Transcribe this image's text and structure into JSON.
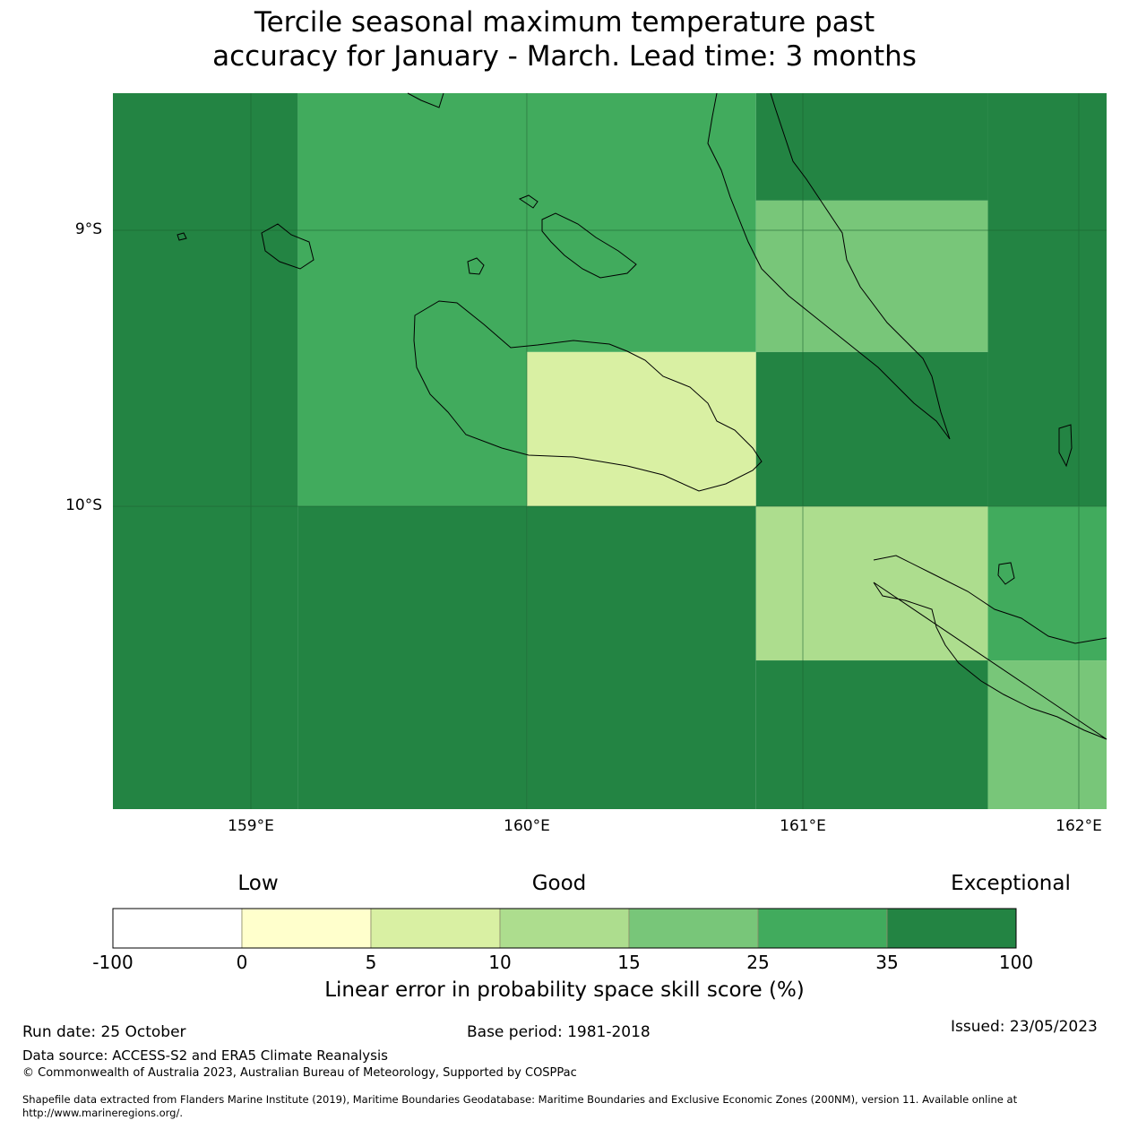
{
  "title": {
    "line1": "Tercile seasonal maximum temperature past",
    "line2": "accuracy for January - March. Lead time: 3 months"
  },
  "map": {
    "lat_labels": [
      "9°S",
      "10°S"
    ],
    "lon_labels": [
      "159°E",
      "160°E",
      "161°E",
      "162°E"
    ],
    "lon_range": [
      158.5,
      162.1
    ],
    "lat_range": [
      -8.5,
      -11.1
    ],
    "cells": [
      {
        "lon": [
          158.5,
          159.17
        ],
        "lat": [
          -8.5,
          -10.0
        ],
        "value": 40
      },
      {
        "lon": [
          158.5,
          159.17
        ],
        "lat": [
          -10.0,
          -11.1
        ],
        "value": 40
      },
      {
        "lon": [
          159.17,
          160.0
        ],
        "lat": [
          -8.5,
          -10.0
        ],
        "value": 30
      },
      {
        "lon": [
          159.17,
          160.0
        ],
        "lat": [
          -10.0,
          -11.1
        ],
        "value": 40
      },
      {
        "lon": [
          160.0,
          160.83
        ],
        "lat": [
          -8.5,
          -9.44
        ],
        "value": 30
      },
      {
        "lon": [
          160.0,
          160.83
        ],
        "lat": [
          -9.44,
          -10.0
        ],
        "value": 7
      },
      {
        "lon": [
          160.0,
          160.83
        ],
        "lat": [
          -10.0,
          -11.1
        ],
        "value": 40
      },
      {
        "lon": [
          160.83,
          161.67
        ],
        "lat": [
          -8.5,
          -8.89
        ],
        "value": 40
      },
      {
        "lon": [
          160.83,
          161.67
        ],
        "lat": [
          -8.89,
          -9.44
        ],
        "value": 20
      },
      {
        "lon": [
          160.83,
          161.67
        ],
        "lat": [
          -9.44,
          -10.0
        ],
        "value": 40
      },
      {
        "lon": [
          160.83,
          161.67
        ],
        "lat": [
          -10.0,
          -10.56
        ],
        "value": 12
      },
      {
        "lon": [
          160.83,
          161.67
        ],
        "lat": [
          -10.56,
          -11.1
        ],
        "value": 40
      },
      {
        "lon": [
          161.67,
          162.1
        ],
        "lat": [
          -8.5,
          -10.0
        ],
        "value": 40
      },
      {
        "lon": [
          161.67,
          162.1
        ],
        "lat": [
          -10.0,
          -10.56
        ],
        "value": 30
      },
      {
        "lon": [
          161.67,
          162.1
        ],
        "lat": [
          -10.56,
          -11.1
        ],
        "value": 20
      }
    ]
  },
  "colorbar": {
    "categories": [
      "Low",
      "Good",
      "Exceptional"
    ],
    "ticks": [
      "-100",
      "0",
      "5",
      "10",
      "15",
      "25",
      "35",
      "100"
    ],
    "bounds": [
      -100,
      0,
      5,
      10,
      15,
      25,
      35,
      100
    ],
    "colors": [
      "#ffffff",
      "#ffffcc",
      "#d9f0a3",
      "#addd8e",
      "#78c679",
      "#41ab5d",
      "#238443"
    ],
    "title": "Linear error in probability space skill score (%)"
  },
  "footer": {
    "run_date": "Run date: 25 October",
    "base_period": "Base period: 1981-2018",
    "issued": "Issued: 23/05/2023",
    "data_source": "Data source: ACCESS-S2 and ERA5 Climate Reanalysis",
    "copyright": "© Commonwealth of Australia 2023, Australian Bureau of Meteorology, Supported by COSPPac",
    "shapefile_line1": "Shapefile data extracted from Flanders Marine Institute (2019), Maritime Boundaries Geodatabase: Maritime Boundaries and Exclusive Economic Zones (200NM), version 11. Available online at",
    "shapefile_line2": "http://www.marineregions.org/."
  }
}
